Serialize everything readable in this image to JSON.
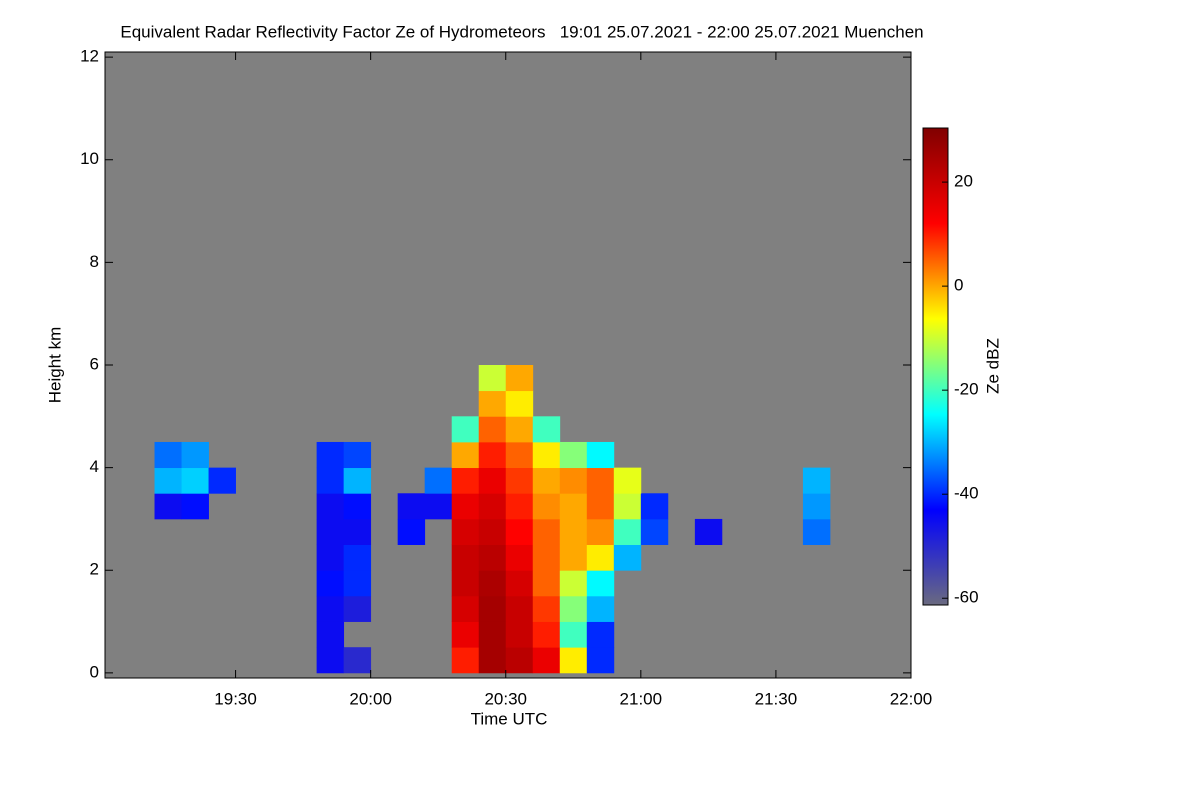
{
  "chart_data": {
    "type": "heatmap",
    "title": "Equivalent Radar Reflectivity Factor Ze of Hydrometeors   19:01 25.07.2021 - 22:00 25.07.2021 Muenchen",
    "x_label": "Time UTC",
    "y_label": "Height km",
    "colorbar_label": "Ze dBZ",
    "xlim": [
      19.0167,
      22.0
    ],
    "xticks": [
      {
        "value": 19.5,
        "label": "19:30"
      },
      {
        "value": 20.0,
        "label": "20:00"
      },
      {
        "value": 20.5,
        "label": "20:30"
      },
      {
        "value": 21.0,
        "label": "21:00"
      },
      {
        "value": 21.5,
        "label": "21:30"
      },
      {
        "value": 22.0,
        "label": "22:00"
      }
    ],
    "ylim": [
      -0.1,
      12.1
    ],
    "yticks": [
      0,
      2,
      4,
      6,
      8,
      10,
      12
    ],
    "x_bins": [
      19.0,
      19.1,
      19.2,
      19.3,
      19.4,
      19.5,
      19.6,
      19.7,
      19.8,
      19.9,
      20.0,
      20.1,
      20.2,
      20.3,
      20.4,
      20.5,
      20.6,
      20.7,
      20.8,
      20.9,
      21.0,
      21.1,
      21.2,
      21.3,
      21.4,
      21.5,
      21.6,
      21.7,
      21.8,
      21.9,
      22.0
    ],
    "y_bins": [
      0,
      0.5,
      1,
      1.5,
      2,
      2.5,
      3,
      3.5,
      4,
      4.5,
      5,
      5.5,
      6
    ],
    "z": [
      [
        null,
        null,
        null,
        null,
        null,
        null,
        null,
        null,
        -45,
        -50,
        null,
        null,
        null,
        10,
        25,
        22,
        15,
        -5,
        -40,
        null,
        null,
        null,
        null,
        null,
        null,
        null,
        null,
        null,
        null,
        null
      ],
      [
        null,
        null,
        null,
        null,
        null,
        null,
        null,
        null,
        -45,
        null,
        null,
        null,
        null,
        15,
        25,
        20,
        10,
        -20,
        -40,
        null,
        null,
        null,
        null,
        null,
        null,
        null,
        null,
        null,
        null,
        null
      ],
      [
        null,
        null,
        null,
        null,
        null,
        null,
        null,
        null,
        -45,
        -48,
        null,
        null,
        null,
        18,
        25,
        20,
        8,
        -15,
        -30,
        null,
        null,
        null,
        null,
        null,
        null,
        null,
        null,
        null,
        null,
        null
      ],
      [
        null,
        null,
        null,
        null,
        null,
        null,
        null,
        null,
        -42,
        -40,
        null,
        null,
        null,
        20,
        24,
        18,
        5,
        -10,
        -25,
        null,
        null,
        null,
        null,
        null,
        null,
        null,
        null,
        null,
        null,
        null
      ],
      [
        null,
        null,
        null,
        null,
        null,
        null,
        null,
        null,
        -45,
        -40,
        null,
        null,
        null,
        20,
        22,
        15,
        5,
        0,
        -5,
        -30,
        null,
        null,
        null,
        null,
        null,
        null,
        null,
        null,
        null,
        null
      ],
      [
        null,
        null,
        null,
        null,
        null,
        null,
        null,
        null,
        -45,
        -45,
        null,
        -42,
        null,
        18,
        20,
        12,
        5,
        0,
        2,
        -20,
        -38,
        null,
        -45,
        null,
        null,
        null,
        -35,
        null,
        null,
        null
      ],
      [
        null,
        null,
        -45,
        -42,
        null,
        null,
        null,
        null,
        -45,
        -42,
        null,
        -45,
        -45,
        15,
        18,
        10,
        2,
        0,
        5,
        -10,
        -40,
        null,
        null,
        null,
        null,
        null,
        -32,
        null,
        null,
        null
      ],
      [
        null,
        null,
        -30,
        -28,
        -40,
        null,
        null,
        null,
        -40,
        -30,
        null,
        null,
        -35,
        10,
        15,
        8,
        0,
        2,
        5,
        -8,
        null,
        null,
        null,
        null,
        null,
        null,
        -30,
        null,
        null,
        null
      ],
      [
        null,
        null,
        -35,
        -32,
        null,
        null,
        null,
        null,
        -40,
        -38,
        null,
        null,
        null,
        0,
        10,
        5,
        -5,
        -15,
        -25,
        null,
        null,
        null,
        null,
        null,
        null,
        null,
        null,
        null,
        null,
        null
      ],
      [
        null,
        null,
        null,
        null,
        null,
        null,
        null,
        null,
        null,
        null,
        null,
        null,
        null,
        -20,
        5,
        0,
        -20,
        null,
        null,
        null,
        null,
        null,
        null,
        null,
        null,
        null,
        null,
        null,
        null,
        null
      ],
      [
        null,
        null,
        null,
        null,
        null,
        null,
        null,
        null,
        null,
        null,
        null,
        null,
        null,
        null,
        0,
        -5,
        null,
        null,
        null,
        null,
        null,
        null,
        null,
        null,
        null,
        null,
        null,
        null,
        null,
        null
      ],
      [
        null,
        null,
        null,
        null,
        null,
        null,
        null,
        null,
        null,
        null,
        null,
        null,
        null,
        null,
        -10,
        0,
        null,
        null,
        null,
        null,
        null,
        null,
        null,
        null,
        null,
        null,
        null,
        null,
        null,
        null
      ]
    ],
    "clim": [
      -61.3,
      30.4
    ],
    "cticks": [
      -60,
      -40,
      -20,
      0,
      20
    ],
    "colormap": [
      "#6a6a80",
      "#0000ff",
      "#00ffff",
      "#ffff00",
      "#ff0000",
      "#800000"
    ],
    "background_color": "#808080"
  }
}
